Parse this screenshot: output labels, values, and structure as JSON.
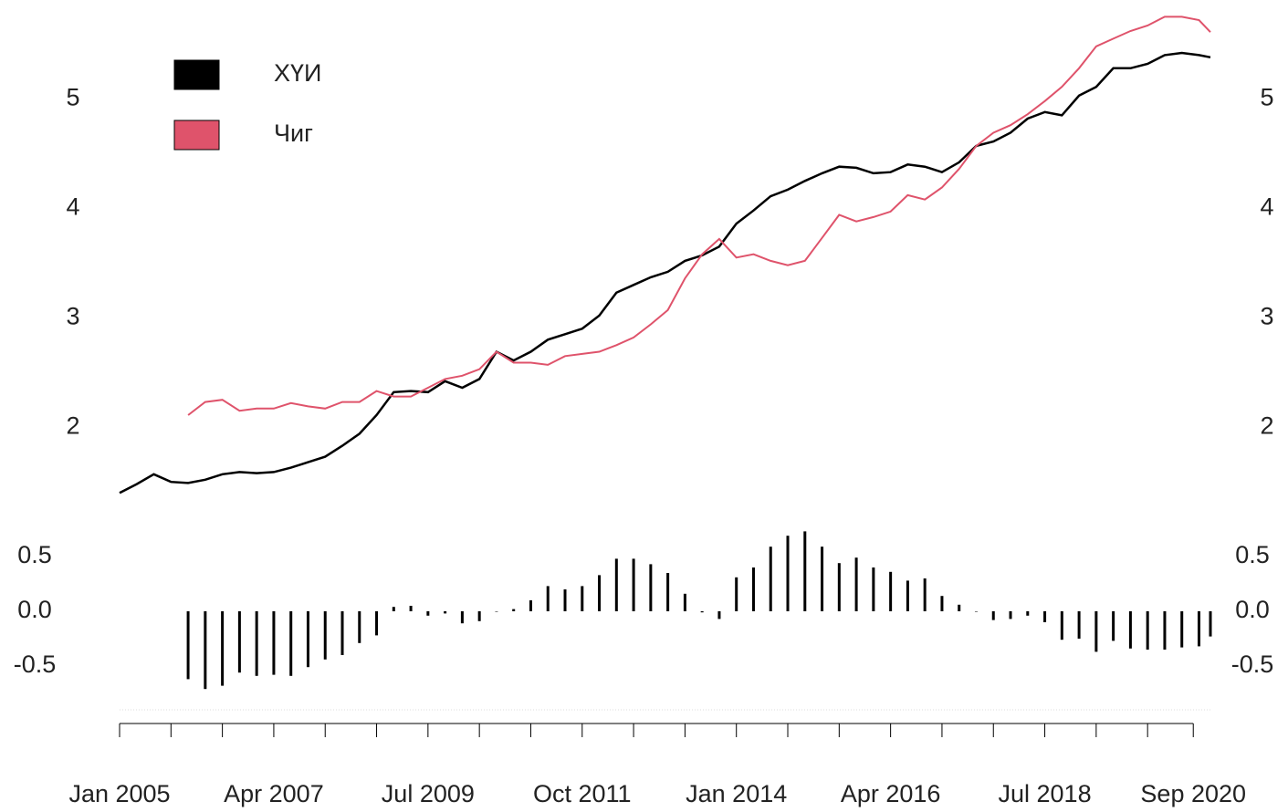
{
  "chart_data": [
    {
      "type": "line",
      "x": [
        "2005-01",
        "2005-04",
        "2005-07",
        "2005-10",
        "2006-01",
        "2006-04",
        "2006-07",
        "2006-10",
        "2007-01",
        "2007-04",
        "2007-07",
        "2007-10",
        "2008-01",
        "2008-04",
        "2008-07",
        "2008-10",
        "2009-01",
        "2009-04",
        "2009-07",
        "2009-10",
        "2010-01",
        "2010-04",
        "2010-07",
        "2010-10",
        "2011-01",
        "2011-04",
        "2011-07",
        "2011-10",
        "2012-01",
        "2012-04",
        "2012-07",
        "2012-10",
        "2013-01",
        "2013-04",
        "2013-07",
        "2013-10",
        "2014-01",
        "2014-04",
        "2014-07",
        "2014-10",
        "2015-01",
        "2015-04",
        "2015-07",
        "2015-10",
        "2016-01",
        "2016-04",
        "2016-07",
        "2016-10",
        "2017-01",
        "2017-04",
        "2017-07",
        "2017-10",
        "2018-01",
        "2018-04",
        "2018-07",
        "2018-10",
        "2019-01",
        "2019-04",
        "2019-07",
        "2019-10",
        "2020-01",
        "2020-04",
        "2020-07",
        "2020-10",
        "2020-12"
      ],
      "series": [
        {
          "name": "ХҮИ",
          "color": "#000000",
          "values": [
            1.4,
            1.48,
            1.57,
            1.5,
            1.49,
            1.52,
            1.57,
            1.59,
            1.58,
            1.59,
            1.63,
            1.68,
            1.73,
            1.83,
            1.94,
            2.11,
            2.32,
            2.33,
            2.32,
            2.42,
            2.36,
            2.44,
            2.69,
            2.61,
            2.69,
            2.8,
            2.85,
            2.9,
            3.02,
            3.23,
            3.3,
            3.37,
            3.42,
            3.52,
            3.57,
            3.65,
            3.86,
            3.98,
            4.11,
            4.17,
            4.25,
            4.32,
            4.38,
            4.37,
            4.32,
            4.33,
            4.4,
            4.38,
            4.33,
            4.42,
            4.57,
            4.61,
            4.69,
            4.82,
            4.88,
            4.85,
            5.03,
            5.11,
            5.28,
            5.28,
            5.32,
            5.4,
            5.42,
            5.4,
            5.38
          ]
        },
        {
          "name": "Чиг",
          "color": "#DF536B",
          "values": [
            null,
            null,
            null,
            null,
            2.11,
            2.23,
            2.25,
            2.15,
            2.17,
            2.17,
            2.22,
            2.19,
            2.17,
            2.23,
            2.23,
            2.33,
            2.28,
            2.28,
            2.36,
            2.44,
            2.47,
            2.53,
            2.69,
            2.59,
            2.59,
            2.57,
            2.65,
            2.67,
            2.69,
            2.75,
            2.82,
            2.94,
            3.07,
            3.36,
            3.58,
            3.72,
            3.55,
            3.58,
            3.52,
            3.48,
            3.52,
            3.73,
            3.94,
            3.88,
            3.92,
            3.97,
            4.12,
            4.08,
            4.19,
            4.36,
            4.57,
            4.69,
            4.76,
            4.86,
            4.98,
            5.11,
            5.28,
            5.48,
            5.55,
            5.62,
            5.67,
            5.75,
            5.75,
            5.72,
            5.61
          ]
        }
      ],
      "ylim": [
        1.36,
        5.82
      ],
      "yticks": [
        2,
        3,
        4,
        5
      ],
      "legend": "top-left"
    },
    {
      "type": "bar",
      "x": [
        "2005-01",
        "2005-04",
        "2005-07",
        "2005-10",
        "2006-01",
        "2006-04",
        "2006-07",
        "2006-10",
        "2007-01",
        "2007-04",
        "2007-07",
        "2007-10",
        "2008-01",
        "2008-04",
        "2008-07",
        "2008-10",
        "2009-01",
        "2009-04",
        "2009-07",
        "2009-10",
        "2010-01",
        "2010-04",
        "2010-07",
        "2010-10",
        "2011-01",
        "2011-04",
        "2011-07",
        "2011-10",
        "2012-01",
        "2012-04",
        "2012-07",
        "2012-10",
        "2013-01",
        "2013-04",
        "2013-07",
        "2013-10",
        "2014-01",
        "2014-04",
        "2014-07",
        "2014-10",
        "2015-01",
        "2015-04",
        "2015-07",
        "2015-10",
        "2016-01",
        "2016-04",
        "2016-07",
        "2016-10",
        "2017-01",
        "2017-04",
        "2017-07",
        "2017-10",
        "2018-01",
        "2018-04",
        "2018-07",
        "2018-10",
        "2019-01",
        "2019-04",
        "2019-07",
        "2019-10",
        "2020-01",
        "2020-04",
        "2020-07",
        "2020-10",
        "2020-12"
      ],
      "values": [
        null,
        null,
        null,
        null,
        -0.62,
        -0.71,
        -0.68,
        -0.56,
        -0.59,
        -0.58,
        -0.59,
        -0.51,
        -0.44,
        -0.4,
        -0.29,
        -0.22,
        0.04,
        0.05,
        -0.04,
        -0.02,
        -0.11,
        -0.09,
        0.0,
        0.02,
        0.1,
        0.23,
        0.2,
        0.23,
        0.33,
        0.48,
        0.48,
        0.43,
        0.35,
        0.16,
        -0.01,
        -0.07,
        0.31,
        0.4,
        0.59,
        0.69,
        0.73,
        0.59,
        0.44,
        0.49,
        0.4,
        0.36,
        0.28,
        0.3,
        0.14,
        0.06,
        0.0,
        -0.08,
        -0.07,
        -0.04,
        -0.1,
        -0.26,
        -0.25,
        -0.37,
        -0.27,
        -0.34,
        -0.35,
        -0.35,
        -0.33,
        -0.32,
        -0.23
      ],
      "color": "#000000",
      "ylim": [
        -0.875,
        0.75
      ],
      "yticks": [
        {
          "value": -0.5,
          "label": "-0.5"
        },
        {
          "value": 0,
          "label": "0.0"
        },
        0.5
      ],
      "xlim": [
        "2005-01",
        "2020-12"
      ],
      "xticks": [
        {
          "value": "2005-01",
          "label": "Jan 2005"
        },
        {
          "value": "2007-04",
          "label": "Apr 2007"
        },
        {
          "value": "2009-07",
          "label": "Jul 2009"
        },
        {
          "value": "2011-10",
          "label": "Oct 2011"
        },
        {
          "value": "2014-01",
          "label": "Jan 2014"
        },
        {
          "value": "2016-04",
          "label": "Apr 2016"
        },
        {
          "value": "2018-07",
          "label": "Jul 2018"
        },
        {
          "value": "2020-09",
          "label": "Sep 2020"
        }
      ],
      "xminor_ticks": [
        "2005-10",
        "2006-07",
        "2008-01",
        "2008-10",
        "2010-04",
        "2011-01",
        "2012-07",
        "2013-04",
        "2014-10",
        "2015-07",
        "2017-01",
        "2017-10",
        "2019-04",
        "2020-01"
      ]
    }
  ]
}
